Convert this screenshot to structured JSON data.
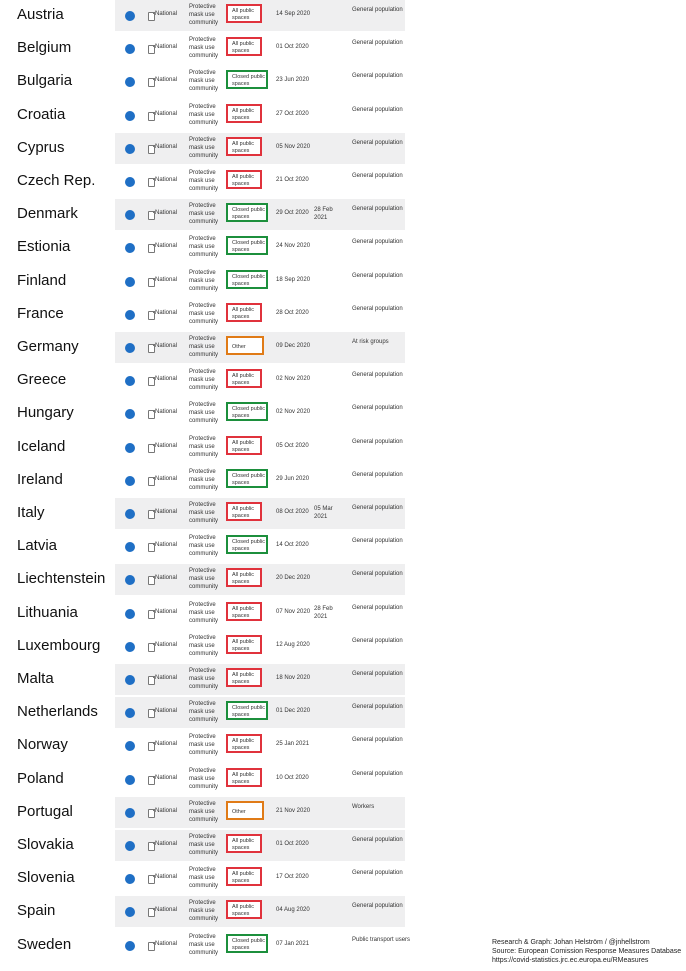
{
  "rows": [
    {
      "country": "Austria",
      "level": "National",
      "measure": "Protective mask use community",
      "scope": "All public spaces",
      "scope_type": "all",
      "start": "14 Sep 2020",
      "end": "",
      "target": "General population",
      "shaded": true
    },
    {
      "country": "Belgium",
      "level": "National",
      "measure": "Protective mask use community",
      "scope": "All public spaces",
      "scope_type": "all",
      "start": "01 Oct 2020",
      "end": "",
      "target": "General population",
      "shaded": false
    },
    {
      "country": "Bulgaria",
      "level": "National",
      "measure": "Protective mask use community",
      "scope": "Closed public spaces",
      "scope_type": "closed",
      "start": "23 Jun 2020",
      "end": "",
      "target": "General population",
      "shaded": false
    },
    {
      "country": "Croatia",
      "level": "National",
      "measure": "Protective mask use community",
      "scope": "All public spaces",
      "scope_type": "all",
      "start": "27 Oct 2020",
      "end": "",
      "target": "General population",
      "shaded": false
    },
    {
      "country": "Cyprus",
      "level": "National",
      "measure": "Protective mask use community",
      "scope": "All public spaces",
      "scope_type": "all",
      "start": "05 Nov 2020",
      "end": "",
      "target": "General population",
      "shaded": true
    },
    {
      "country": "Czech Rep.",
      "level": "National",
      "measure": "Protective mask use community",
      "scope": "All public spaces",
      "scope_type": "all",
      "start": "21 Oct 2020",
      "end": "",
      "target": "General population",
      "shaded": false
    },
    {
      "country": "Denmark",
      "level": "National",
      "measure": "Protective mask use community",
      "scope": "Closed public spaces",
      "scope_type": "closed",
      "start": "29 Oct 2020",
      "end": "28 Feb 2021",
      "target": "General population",
      "shaded": true
    },
    {
      "country": "Estionia",
      "level": "National",
      "measure": "Protective mask use community",
      "scope": "Closed public spaces",
      "scope_type": "closed",
      "start": "24 Nov 2020",
      "end": "",
      "target": "General population",
      "shaded": false
    },
    {
      "country": "Finland",
      "level": "National",
      "measure": "Protective mask use community",
      "scope": "Closed public spaces",
      "scope_type": "closed",
      "start": "18 Sep 2020",
      "end": "",
      "target": "General population",
      "shaded": false
    },
    {
      "country": "France",
      "level": "National",
      "measure": "Protective mask use community",
      "scope": "All public spaces",
      "scope_type": "all",
      "start": "28 Oct 2020",
      "end": "",
      "target": "General population",
      "shaded": false
    },
    {
      "country": "Germany",
      "level": "National",
      "measure": "Protective mask use community",
      "scope": "Other",
      "scope_type": "other",
      "start": "09 Dec 2020",
      "end": "",
      "target": "At risk groups",
      "shaded": true
    },
    {
      "country": "Greece",
      "level": "National",
      "measure": "Protective mask use community",
      "scope": "All public spaces",
      "scope_type": "all",
      "start": "02 Nov 2020",
      "end": "",
      "target": "General population",
      "shaded": false
    },
    {
      "country": "Hungary",
      "level": "National",
      "measure": "Protective mask use community",
      "scope": "Closed public spaces",
      "scope_type": "closed",
      "start": "02 Nov 2020",
      "end": "",
      "target": "General population",
      "shaded": false
    },
    {
      "country": "Iceland",
      "level": "National",
      "measure": "Protective mask use community",
      "scope": "All public spaces",
      "scope_type": "all",
      "start": "05 Oct 2020",
      "end": "",
      "target": "General population",
      "shaded": false
    },
    {
      "country": "Ireland",
      "level": "National",
      "measure": "Protective mask use community",
      "scope": "Closed public spaces",
      "scope_type": "closed",
      "start": "29 Jun 2020",
      "end": "",
      "target": "General population",
      "shaded": false
    },
    {
      "country": "Italy",
      "level": "National",
      "measure": "Protective mask use community",
      "scope": "All public spaces",
      "scope_type": "all",
      "start": "08 Oct 2020",
      "end": "05 Mar 2021",
      "target": "General population",
      "shaded": true
    },
    {
      "country": "Latvia",
      "level": "National",
      "measure": "Protective mask use community",
      "scope": "Closed public spaces",
      "scope_type": "closed",
      "start": "14 Oct 2020",
      "end": "",
      "target": "General population",
      "shaded": false
    },
    {
      "country": "Liechtenstein",
      "level": "National",
      "measure": "Protective mask use community",
      "scope": "All public spaces",
      "scope_type": "all",
      "start": "20 Dec 2020",
      "end": "",
      "target": "General population",
      "shaded": true
    },
    {
      "country": "Lithuania",
      "level": "National",
      "measure": "Protective mask use community",
      "scope": "All public spaces",
      "scope_type": "all",
      "start": "07 Nov 2020",
      "end": "28 Feb 2021",
      "target": "General population",
      "shaded": false
    },
    {
      "country": "Luxembourg",
      "level": "National",
      "measure": "Protective mask use community",
      "scope": "All public spaces",
      "scope_type": "all",
      "start": "12 Aug 2020",
      "end": "",
      "target": "General population",
      "shaded": false
    },
    {
      "country": "Malta",
      "level": "National",
      "measure": "Protective mask use community",
      "scope": "All public spaces",
      "scope_type": "all",
      "start": "18 Nov 2020",
      "end": "",
      "target": "General population",
      "shaded": true
    },
    {
      "country": "Netherlands",
      "level": "National",
      "measure": "Protective mask use community",
      "scope": "Closed public spaces",
      "scope_type": "closed",
      "start": "01 Dec 2020",
      "end": "",
      "target": "General population",
      "shaded": true
    },
    {
      "country": "Norway",
      "level": "National",
      "measure": "Protective mask use community",
      "scope": "All public spaces",
      "scope_type": "all",
      "start": "25 Jan 2021",
      "end": "",
      "target": "General population",
      "shaded": false
    },
    {
      "country": "Poland",
      "level": "National",
      "measure": "Protective mask use community",
      "scope": "All public spaces",
      "scope_type": "all",
      "start": "10 Oct 2020",
      "end": "",
      "target": "General population",
      "shaded": false
    },
    {
      "country": "Portugal",
      "level": "National",
      "measure": "Protective mask use community",
      "scope": "Other",
      "scope_type": "other",
      "start": "21 Nov 2020",
      "end": "",
      "target": "Workers",
      "shaded": true
    },
    {
      "country": "Slovakia",
      "level": "National",
      "measure": "Protective mask use community",
      "scope": "All public spaces",
      "scope_type": "all",
      "start": "01 Oct 2020",
      "end": "",
      "target": "General population",
      "shaded": true
    },
    {
      "country": "Slovenia",
      "level": "National",
      "measure": "Protective mask use community",
      "scope": "All public spaces",
      "scope_type": "all",
      "start": "17 Oct 2020",
      "end": "",
      "target": "General population",
      "shaded": false
    },
    {
      "country": "Spain",
      "level": "National",
      "measure": "Protective mask use community",
      "scope": "All public spaces",
      "scope_type": "all",
      "start": "04 Aug 2020",
      "end": "",
      "target": "General population",
      "shaded": true
    },
    {
      "country": "Sweden",
      "level": "National",
      "measure": "Protective mask use community",
      "scope": "Closed public spaces",
      "scope_type": "closed",
      "start": "07 Jan 2021",
      "end": "",
      "target": "Public transport users",
      "shaded": false
    }
  ],
  "credits": {
    "line1": "Research & Graph: Johan Helström / @jnhellstrom",
    "line2": "Source: European Comission Response Measures Database",
    "line3": "https://covid-statistics.jrc.ec.europa.eu/RMeasures"
  },
  "colors": {
    "all_public_border": "#e0323c",
    "closed_public_border": "#1c8f3c",
    "other_border": "#e07b17",
    "dot": "#1f6fc5"
  }
}
